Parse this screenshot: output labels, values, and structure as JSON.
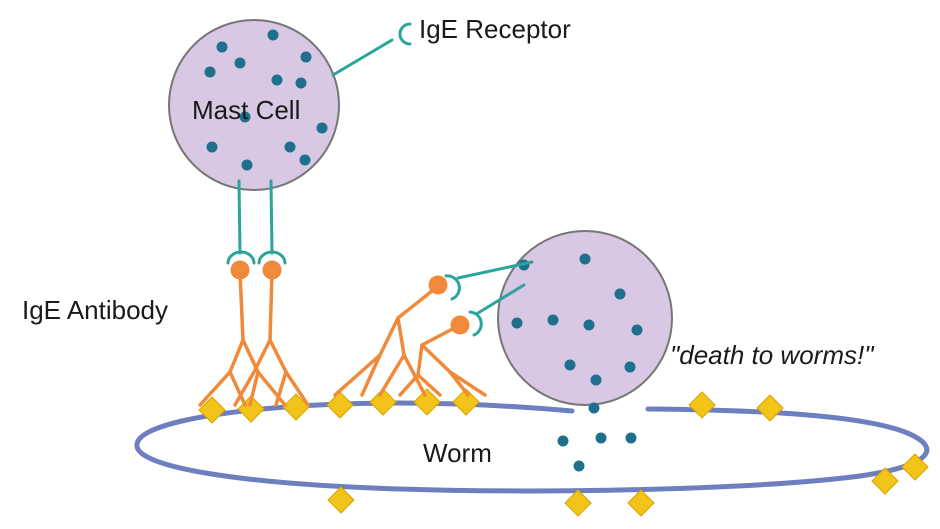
{
  "labels": {
    "ige_receptor": "IgE Receptor",
    "mast_cell": "Mast Cell",
    "ige_antibody": "IgE Antibody",
    "worm": "Worm",
    "death_quote": "\"death to worms!\""
  },
  "colors": {
    "mast_cell_fill": "#d8c8e3",
    "mast_cell_stroke": "#767676",
    "granule": "#1f6f8f",
    "receptor": "#2aa59b",
    "antibody": "#f08a3a",
    "antigen": "#f2c319",
    "worm_stroke": "#6d7fbf",
    "text": "#1a1a1a"
  }
}
